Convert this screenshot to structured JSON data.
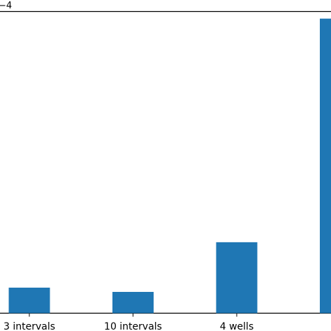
{
  "chart_data": {
    "type": "bar",
    "categories": [
      "3 intervals",
      "10 intervals",
      "4 wells",
      ""
    ],
    "values": [
      0.36,
      0.3,
      1.0,
      4.15
    ],
    "axis_offset_label": "−4",
    "ylim": [
      0,
      4.25
    ],
    "colors": {
      "bar": "#1f77b4",
      "axis": "#000000",
      "background": "#ffffff"
    },
    "grid": false,
    "title": "",
    "xlabel": "",
    "ylabel": ""
  }
}
